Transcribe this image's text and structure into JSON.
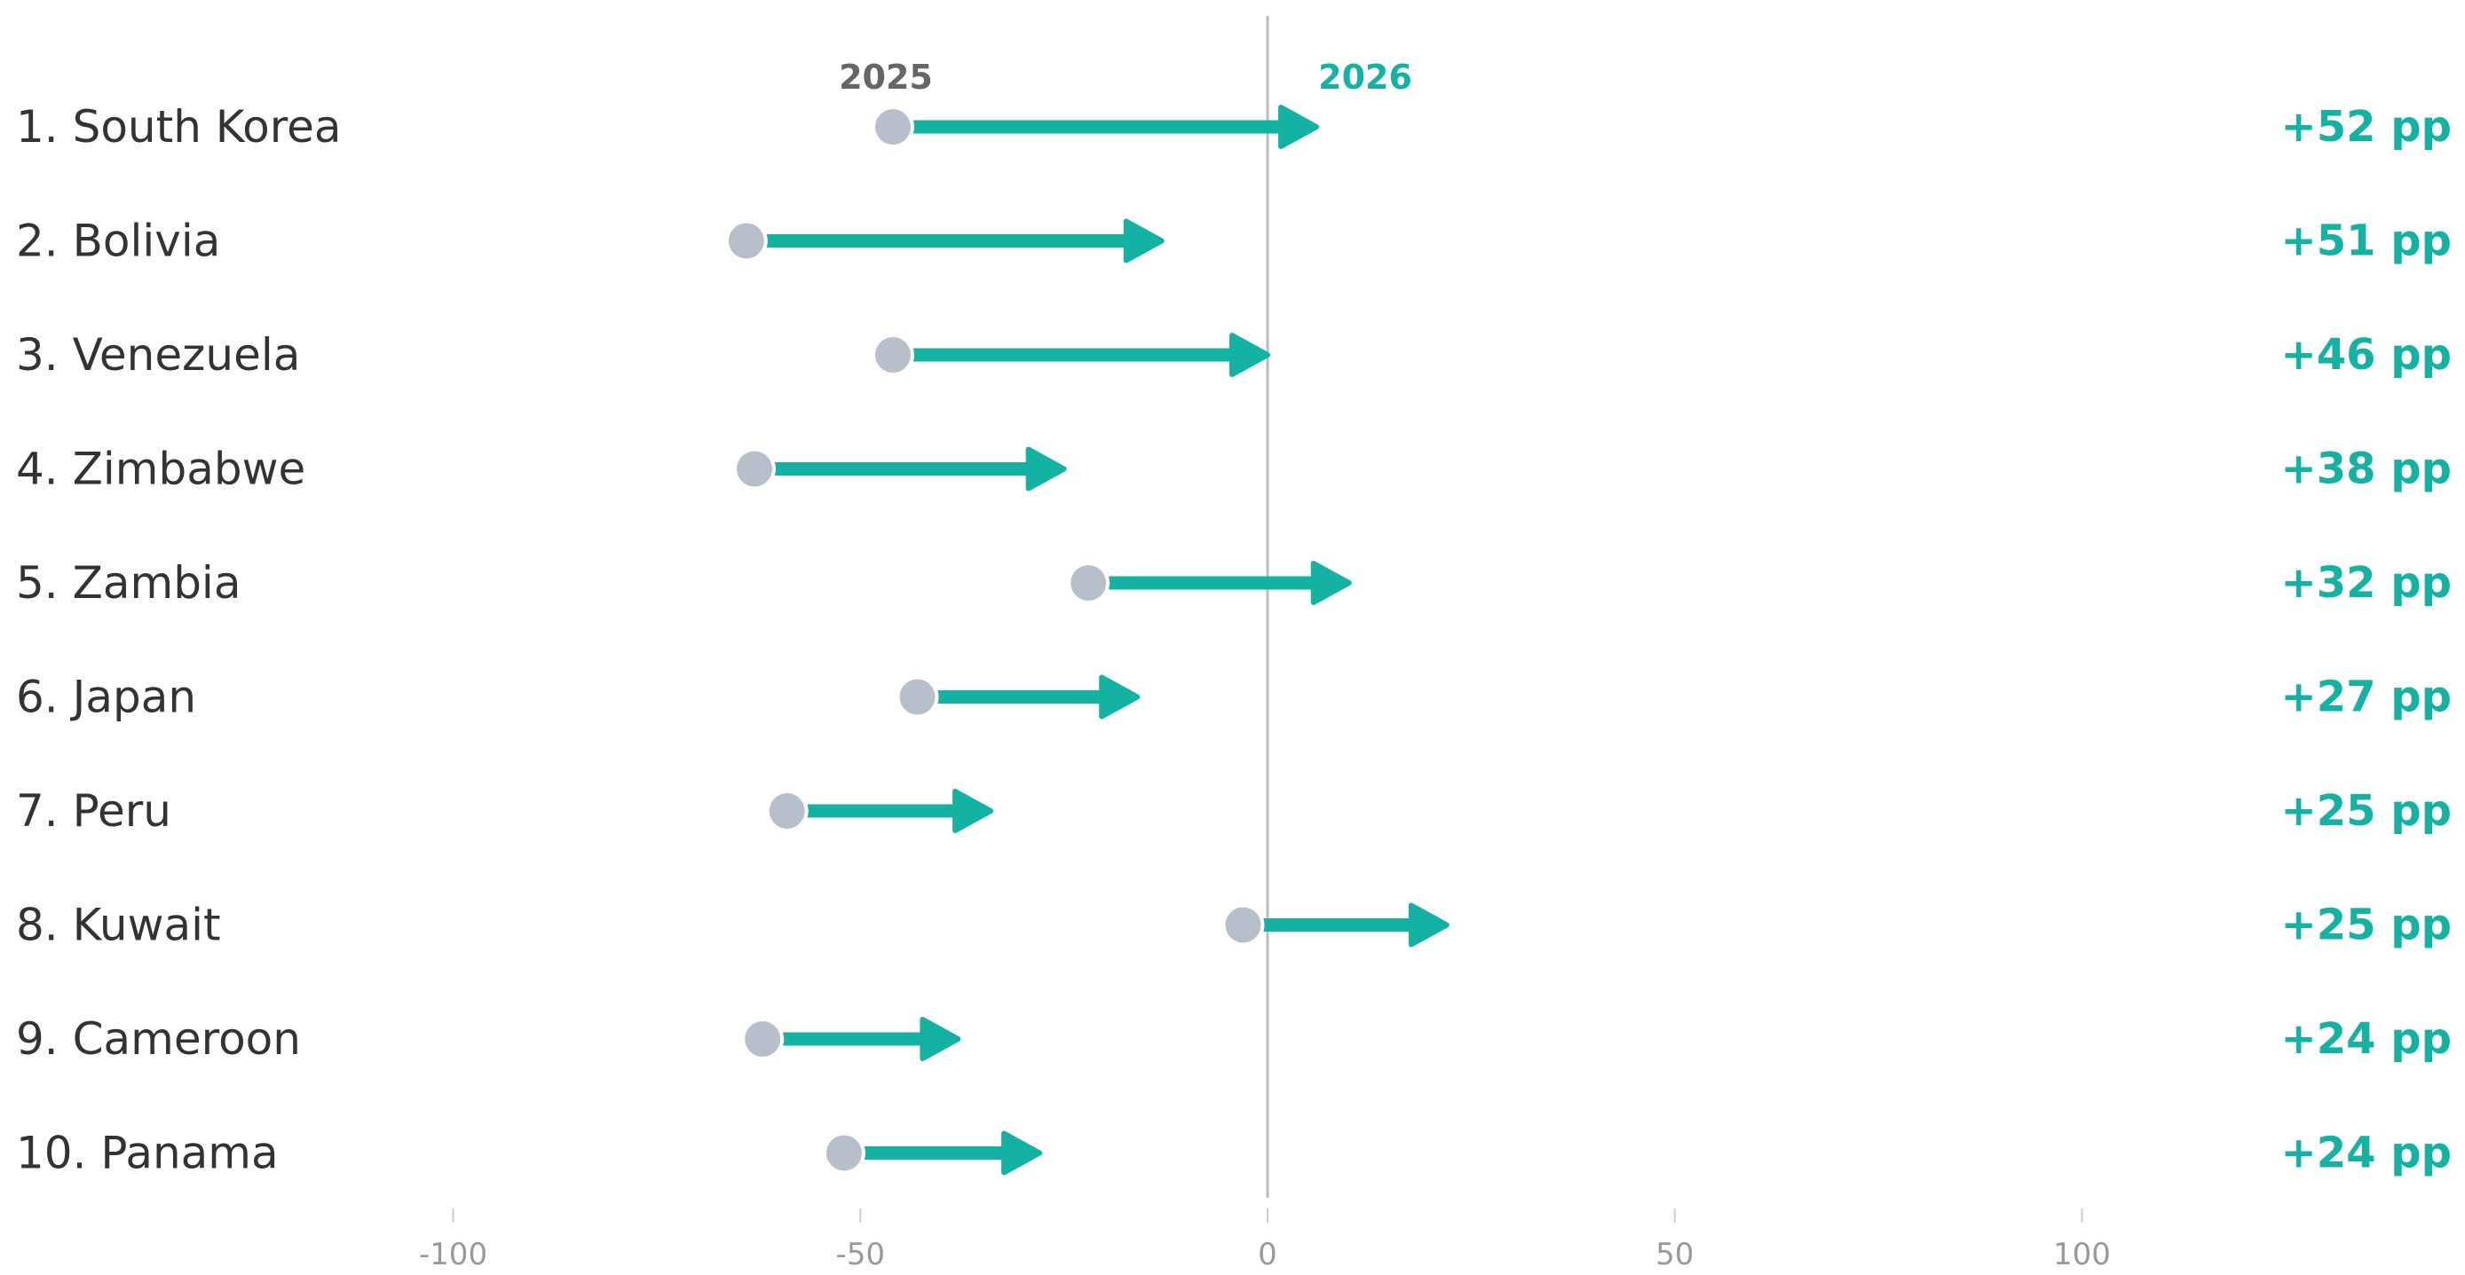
{
  "chart_data": {
    "type": "arrow-dot",
    "series": [
      {
        "name": "2025",
        "color": "#b6bfca"
      },
      {
        "name": "2026",
        "color": "#13b2a2"
      }
    ],
    "legend": {
      "from_label": "2025",
      "to_label": "2026",
      "placement": "top"
    },
    "rows": [
      {
        "label": "1. South Korea",
        "from": -46,
        "to": 6,
        "change": "+52 pp"
      },
      {
        "label": "2. Bolivia",
        "from": -64,
        "to": -13,
        "change": "+51 pp"
      },
      {
        "label": "3. Venezuela",
        "from": -46,
        "to": 0,
        "change": "+46 pp"
      },
      {
        "label": "4. Zimbabwe",
        "from": -63,
        "to": -25,
        "change": "+38 pp"
      },
      {
        "label": "5. Zambia",
        "from": -22,
        "to": 10,
        "change": "+32 pp"
      },
      {
        "label": "6. Japan",
        "from": -43,
        "to": -16,
        "change": "+27 pp"
      },
      {
        "label": "7. Peru",
        "from": -59,
        "to": -34,
        "change": "+25 pp"
      },
      {
        "label": "8. Kuwait",
        "from": -3,
        "to": 22,
        "change": "+25 pp"
      },
      {
        "label": "9. Cameroon",
        "from": -62,
        "to": -38,
        "change": "+24 pp"
      },
      {
        "label": "10. Panama",
        "from": -52,
        "to": -28,
        "change": "+24 pp"
      }
    ],
    "x_ticks": [
      -100,
      -50,
      0,
      50,
      100
    ],
    "x_tick_labels": [
      "-100",
      "-50",
      "0",
      "50",
      "100"
    ],
    "xlim": [
      -150,
      135
    ],
    "zero_line": true,
    "grid": false,
    "colors": {
      "from_dot": "#b6bfca",
      "arrow": "#13b2a2",
      "change_text": "#13b2a2",
      "from_year_text": "#666666",
      "to_year_text": "#13b2a2",
      "zero_line": "#bbbbbb",
      "label_text": "#333333",
      "tick_text": "#999999"
    }
  }
}
